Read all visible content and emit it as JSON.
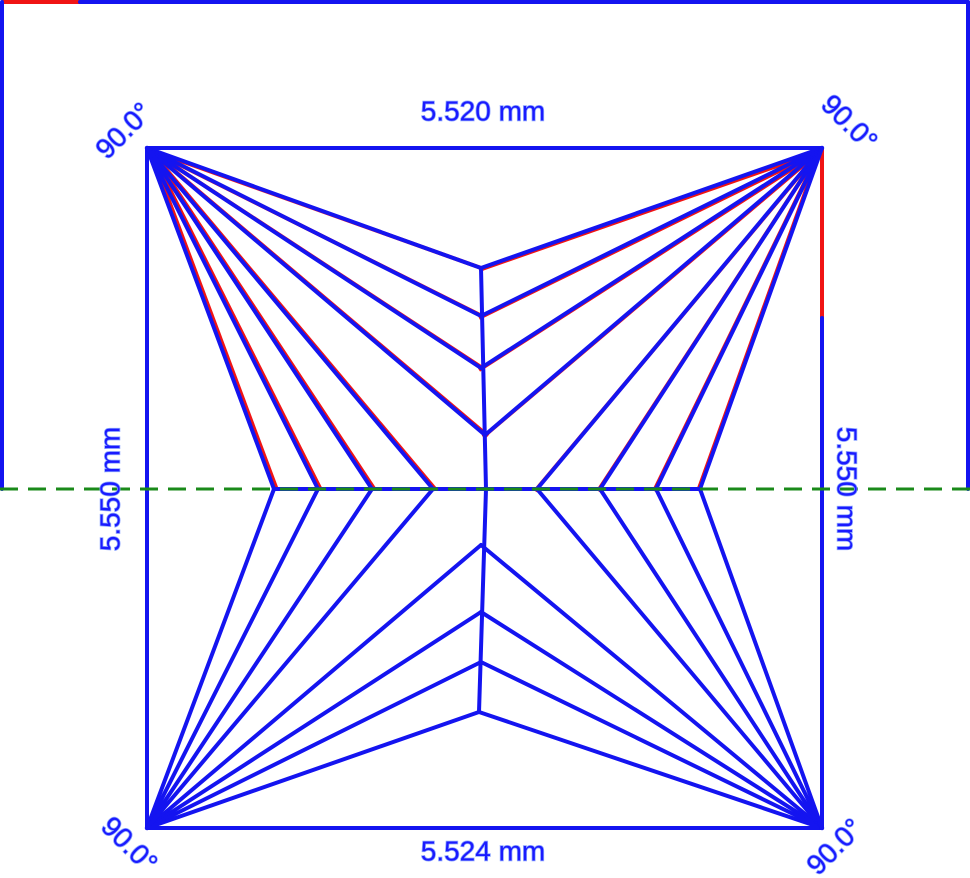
{
  "dimensions": {
    "top": "5.520 mm",
    "bottom": "5.524 mm",
    "left": "5.550 mm",
    "right": "5.550 mm"
  },
  "angles": {
    "top_left": "90.0°",
    "top_right": "90.0°",
    "bottom_left": "90.0°",
    "bottom_right": "90.0°"
  }
}
